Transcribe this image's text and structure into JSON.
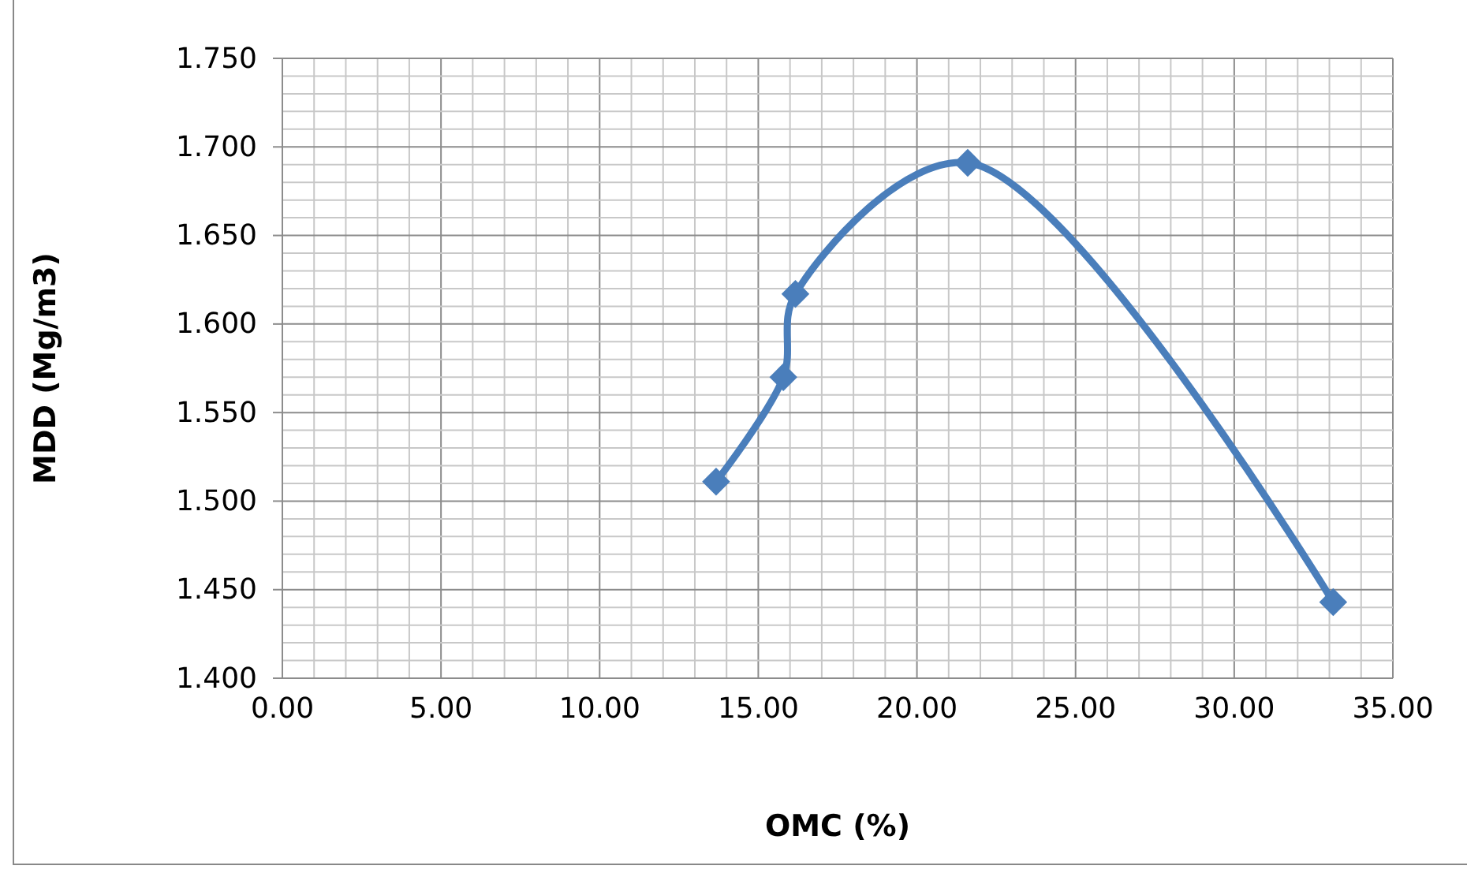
{
  "chart_data": {
    "type": "line",
    "xlabel": "OMC (%)",
    "ylabel": "MDD (Mg/m3)",
    "x": [
      13.67,
      15.79,
      16.17,
      21.6,
      33.12
    ],
    "series": [
      {
        "color": "#4a7ebb",
        "values": [
          1.511,
          1.57,
          1.617,
          1.691,
          1.443
        ]
      }
    ],
    "xlim": [
      0,
      35
    ],
    "xticks": [
      {
        "value": 0,
        "label": "0.00"
      },
      {
        "value": 5,
        "label": "5.00"
      },
      {
        "value": 10,
        "label": "10.00"
      },
      {
        "value": 15,
        "label": "15.00"
      },
      {
        "value": 20,
        "label": "20.00"
      },
      {
        "value": 25,
        "label": "25.00"
      },
      {
        "value": 30,
        "label": "30.00"
      },
      {
        "value": 35,
        "label": "35.00"
      }
    ],
    "ylim": [
      1.4,
      1.75
    ],
    "yticks": [
      {
        "value": 1.4,
        "label": "1.400"
      },
      {
        "value": 1.45,
        "label": "1.450"
      },
      {
        "value": 1.5,
        "label": "1.500"
      },
      {
        "value": 1.55,
        "label": "1.550"
      },
      {
        "value": 1.6,
        "label": "1.600"
      },
      {
        "value": 1.65,
        "label": "1.650"
      },
      {
        "value": 1.7,
        "label": "1.700"
      },
      {
        "value": 1.75,
        "label": "1.750"
      }
    ],
    "grid": true,
    "marker": "diamond",
    "line_style": "solid"
  }
}
